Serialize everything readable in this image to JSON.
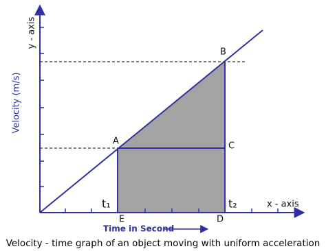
{
  "axes": {
    "y_label": "Velocity (m/s)",
    "y_axis": "y - axis",
    "x_axis": "x - axis",
    "x_label": "Time in Second"
  },
  "points": {
    "A": "A",
    "B": "B",
    "C": "C",
    "D": "D",
    "E": "E",
    "t1": "t₁",
    "t2": "t₂"
  },
  "caption": "Velocity - time graph of an object moving with uniform acceleration"
}
